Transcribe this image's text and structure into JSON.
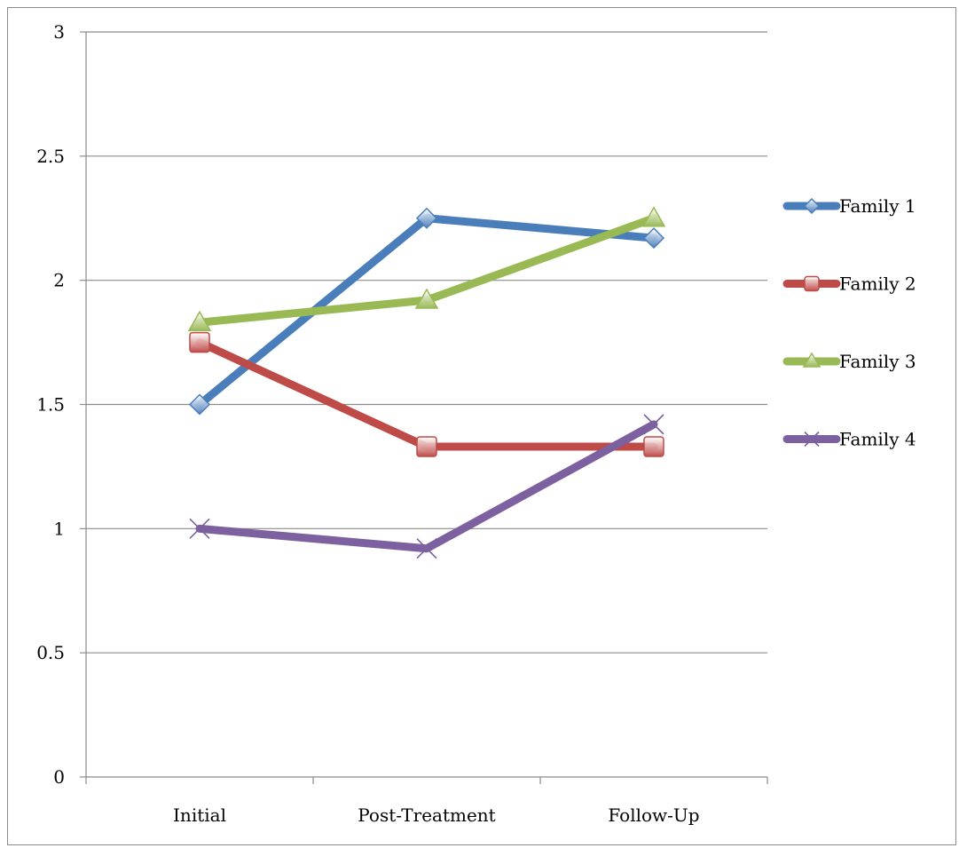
{
  "chart_data": {
    "type": "line",
    "title": "",
    "xlabel": "",
    "ylabel": "",
    "categories": [
      "Initial",
      "Post-Treatment",
      "Follow-Up"
    ],
    "ylim": [
      0,
      3
    ],
    "yticks": [
      "0",
      "0.5",
      "1",
      "1.5",
      "2",
      "2.5",
      "3"
    ],
    "grid": "horizontal",
    "legend_position": "right",
    "series": [
      {
        "name": "Family 1",
        "values": [
          1.5,
          2.25,
          2.17
        ],
        "color": "#4a7ebb",
        "marker": "diamond"
      },
      {
        "name": "Family 2",
        "values": [
          1.75,
          1.33,
          1.33
        ],
        "color": "#be4b48",
        "marker": "square"
      },
      {
        "name": "Family 3",
        "values": [
          1.83,
          1.92,
          2.25
        ],
        "color": "#98b954",
        "marker": "triangle"
      },
      {
        "name": "Family 4",
        "values": [
          1.0,
          0.92,
          1.42
        ],
        "color": "#7d60a0",
        "marker": "x"
      }
    ]
  }
}
